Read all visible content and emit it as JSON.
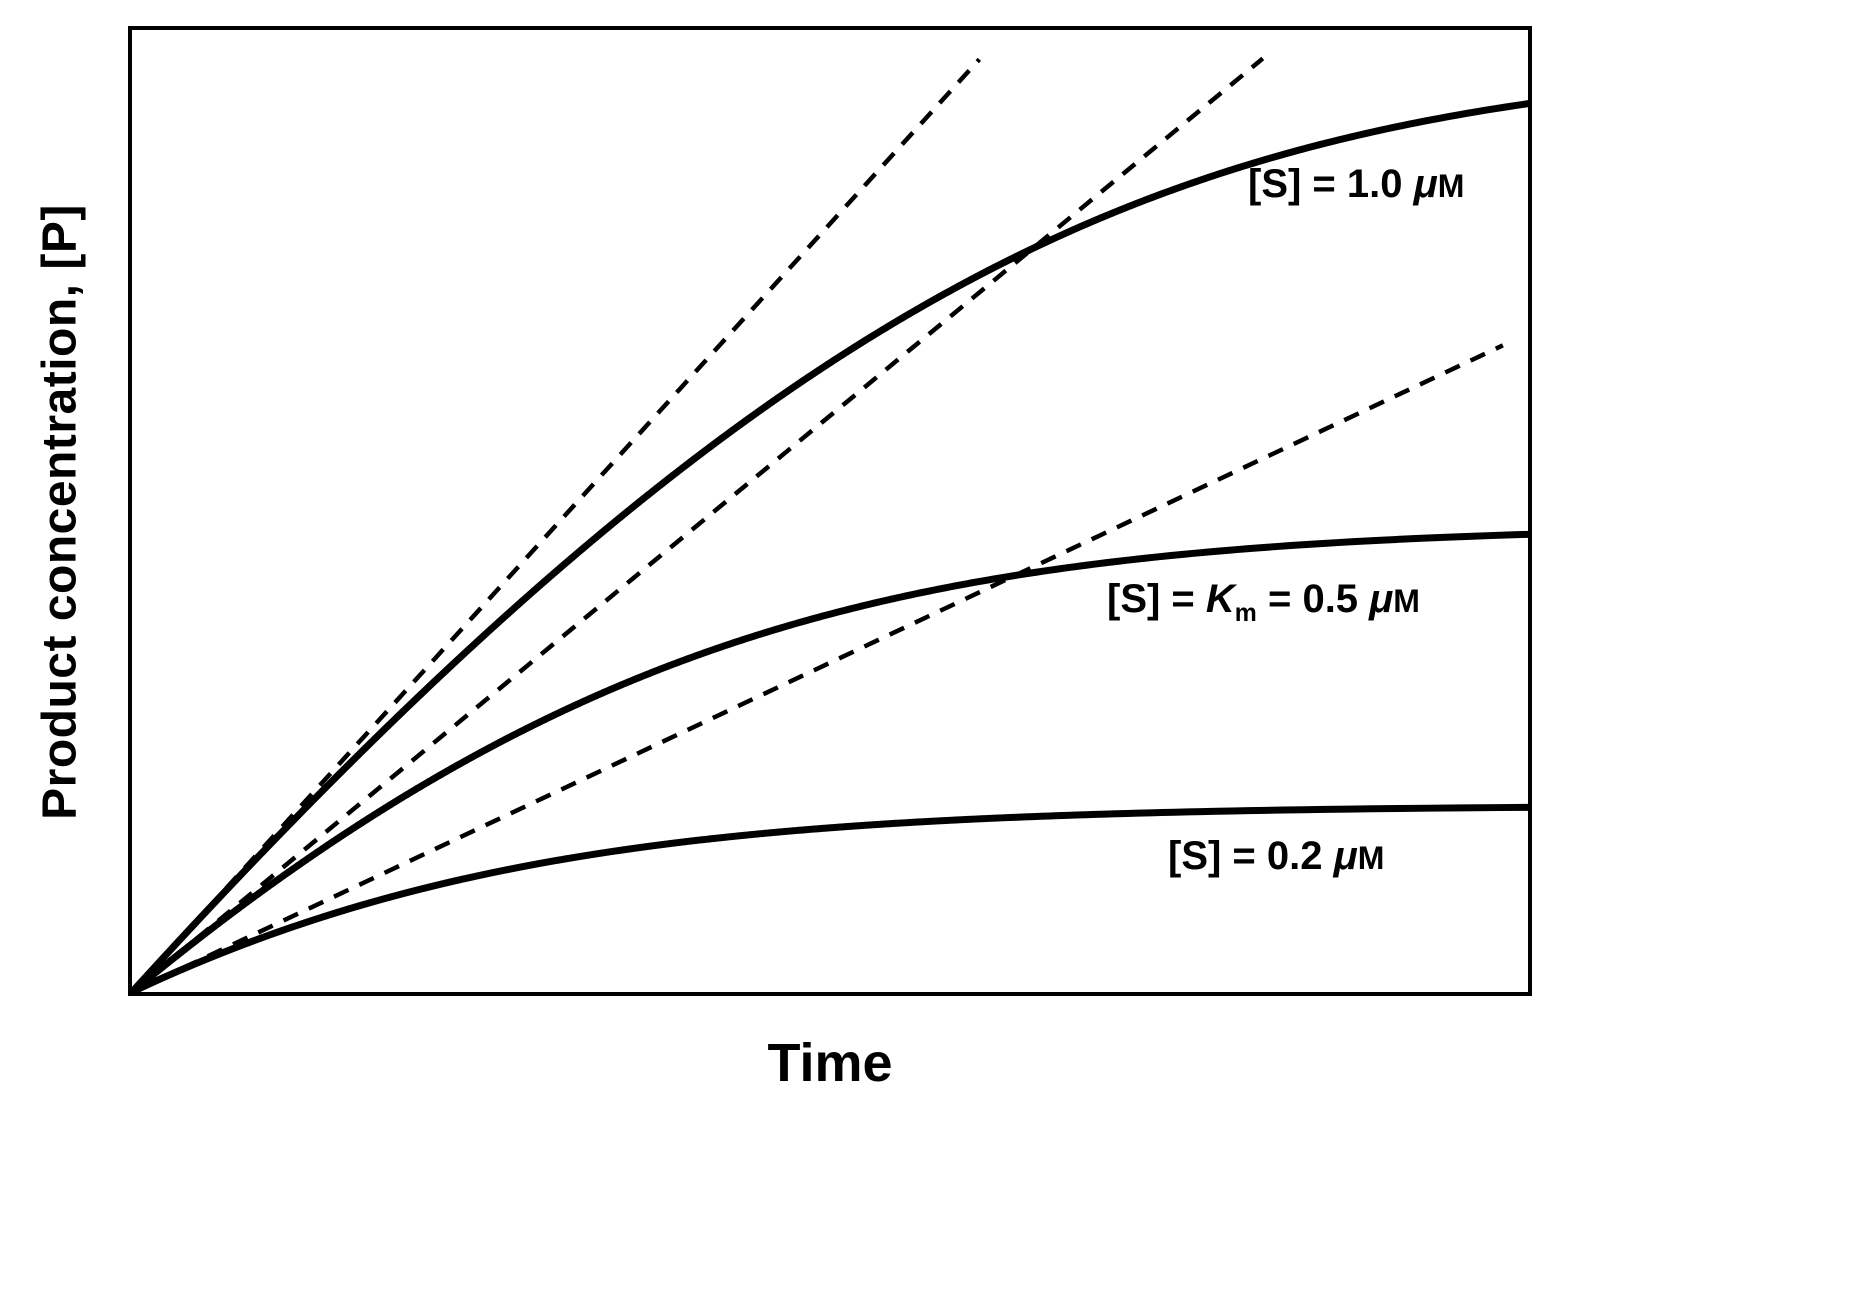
{
  "figure": {
    "background": "#ffffff",
    "ink_color": "#000000"
  },
  "chart_data": {
    "type": "line",
    "title": "",
    "xlabel": "Time",
    "ylabel": "Product concentration, [P]",
    "x_axis": {
      "ticks": "none",
      "range_norm": [
        0,
        1
      ]
    },
    "y_axis": {
      "ticks": "none",
      "range_norm": [
        0,
        1
      ]
    },
    "grid": false,
    "legend": "none (curves labeled inline)",
    "km_uM": 0.5,
    "vmax_rel": 2.47,
    "y_scale": 0.97,
    "model": "integrated Michaelis-Menten progress curve: t = (P + Km·ln(S0/(S0−P))) / Vmax; dashed lines are initial-velocity tangents from the origin",
    "series": [
      {
        "name": "[S] = 1.0 μM",
        "substrate_conc_uM": 1.0,
        "line_style": "solid",
        "tangent_to_x": 0.607,
        "tangent_style": "dashed",
        "label": {
          "pre": "[S] = 1.0 ",
          "mu": "μ",
          "unit": "M"
        }
      },
      {
        "name": "[S] = Km = 0.5 μM",
        "substrate_conc_uM": 0.5,
        "line_style": "solid",
        "tangent_to_x": 0.81,
        "tangent_style": "dashed",
        "label": {
          "pre": "[S] = ",
          "ksym": "K",
          "ksub": "m",
          "eq": " = 0.5 ",
          "mu": "μ",
          "unit": "M"
        }
      },
      {
        "name": "[S] = 0.2 μM",
        "substrate_conc_uM": 0.2,
        "line_style": "solid",
        "tangent_to_x": 0.982,
        "tangent_style": "dashed",
        "label": {
          "pre": "[S] = 0.2 ",
          "mu": "μ",
          "unit": "M"
        }
      }
    ]
  }
}
